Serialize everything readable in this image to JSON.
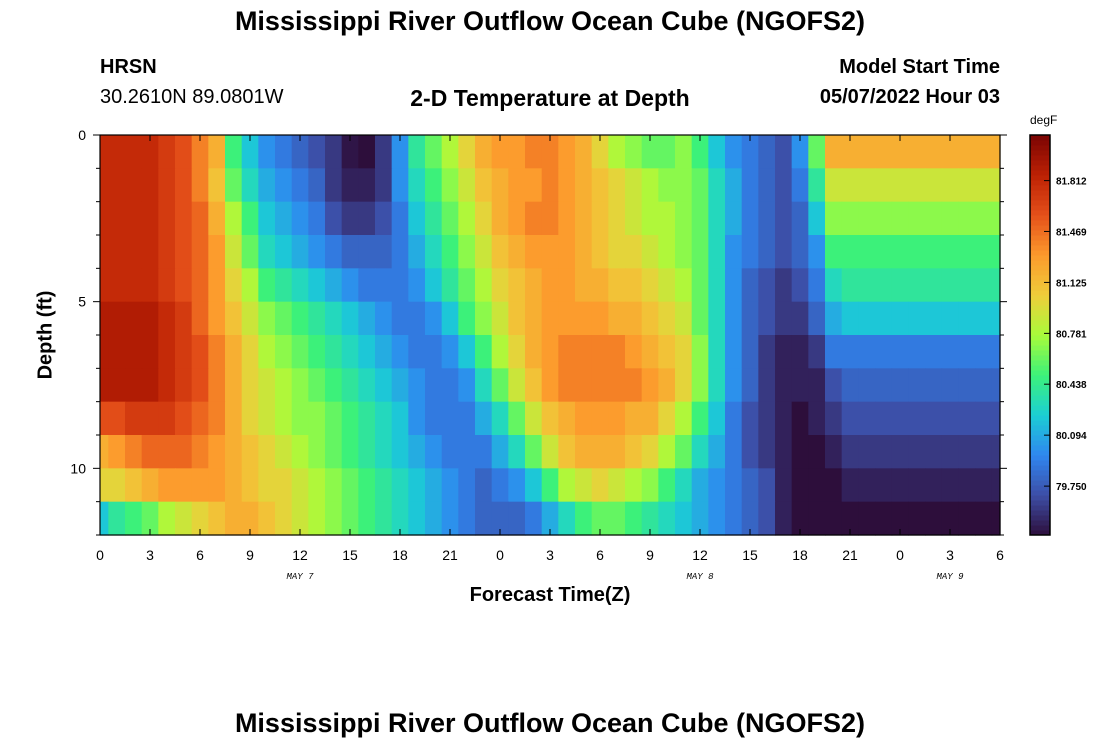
{
  "page": {
    "title": "Mississippi River Outflow Ocean Cube (NGOFS2)",
    "title_bottom": "Mississippi River Outflow Ocean Cube (NGOFS2)",
    "station": "HRSN",
    "coords": "30.2610N  89.0801W",
    "subtitle": "2-D Temperature at Depth",
    "run_label": "Model Start Time",
    "run_value": "05/07/2022 Hour 03"
  },
  "chart_data": {
    "type": "heatmap",
    "title": "2-D Temperature at Depth",
    "xlabel": "Forecast Time(Z)",
    "ylabel": "Depth (ft)",
    "units": "degF",
    "x_range_hours": [
      0,
      54
    ],
    "x_ticks": [
      "0",
      "3",
      "6",
      "9",
      "12",
      "15",
      "18",
      "21",
      "0",
      "3",
      "6",
      "9",
      "12",
      "15",
      "18",
      "21",
      "0",
      "3",
      "6"
    ],
    "day_labels": [
      {
        "label": "MAY 7",
        "hour": 12
      },
      {
        "label": "MAY 8",
        "hour": 36
      },
      {
        "label": "MAY 9",
        "hour": 51
      }
    ],
    "y_range": [
      0,
      12
    ],
    "y_ticks": [
      "0",
      "5",
      "10"
    ],
    "y_tick_values": [
      0,
      5,
      10
    ],
    "depth_levels": [
      0.5,
      1.5,
      2.5,
      3.5,
      4.5,
      5.5,
      6.5,
      7.5,
      8.5,
      9.5,
      10.5,
      11.5
    ],
    "colorbar_range": [
      79.42,
      82.12
    ],
    "colorbar_ticks": [
      "81.812",
      "81.469",
      "81.125",
      "80.781",
      "80.438",
      "80.094",
      "79.750"
    ],
    "colorbar_tick_values": [
      81.812,
      81.469,
      81.125,
      80.781,
      80.438,
      80.094,
      79.75
    ],
    "colormap": [
      "#2d0e3b",
      "#3d4ea6",
      "#2f86f0",
      "#1bcfd4",
      "#3cf17a",
      "#a8fc3a",
      "#efcd3a",
      "#fc9a2c",
      "#e5501a",
      "#bd2104",
      "#7a0403"
    ],
    "keyframes": {
      "hours": [
        0,
        1,
        2,
        3,
        4,
        5,
        6,
        7,
        8,
        9,
        10,
        11,
        12,
        13,
        14,
        15,
        16,
        17,
        18,
        19,
        20,
        21,
        22,
        23,
        24,
        25,
        26,
        27,
        28,
        29,
        30,
        31,
        32,
        33,
        34,
        35,
        36,
        37,
        38,
        39,
        40,
        41,
        42,
        43,
        44,
        45,
        46,
        47,
        48,
        49,
        50,
        51,
        52,
        53,
        54
      ],
      "values_by_depth": [
        [
          81.8,
          81.8,
          81.8,
          81.8,
          81.7,
          81.6,
          81.4,
          81.2,
          80.5,
          80.2,
          80.0,
          79.9,
          79.8,
          79.7,
          79.6,
          79.45,
          79.42,
          79.6,
          80.0,
          80.4,
          80.6,
          80.8,
          81.0,
          81.2,
          81.3,
          81.3,
          81.4,
          81.4,
          81.3,
          81.2,
          81.0,
          80.8,
          80.7,
          80.6,
          80.6,
          80.7,
          80.5,
          80.2,
          80.0,
          79.9,
          79.8,
          79.7,
          80.0,
          80.6,
          81.2,
          81.2,
          81.2,
          81.2,
          81.2,
          81.2,
          81.2,
          81.2,
          81.2,
          81.2,
          81.2
        ],
        [
          81.8,
          81.8,
          81.8,
          81.8,
          81.7,
          81.6,
          81.4,
          81.1,
          80.6,
          80.3,
          80.1,
          80.0,
          79.9,
          79.8,
          79.6,
          79.5,
          79.5,
          79.6,
          80.0,
          80.3,
          80.5,
          80.7,
          80.9,
          81.1,
          81.2,
          81.3,
          81.3,
          81.4,
          81.3,
          81.2,
          81.1,
          81.0,
          80.9,
          80.8,
          80.7,
          80.7,
          80.6,
          80.3,
          80.1,
          79.9,
          79.8,
          79.7,
          79.9,
          80.4,
          80.9,
          80.9,
          80.9,
          80.9,
          80.9,
          80.9,
          80.9,
          80.9,
          80.9,
          80.9,
          80.9
        ],
        [
          81.8,
          81.8,
          81.8,
          81.8,
          81.7,
          81.6,
          81.5,
          81.2,
          80.8,
          80.5,
          80.2,
          80.1,
          80.0,
          79.9,
          79.7,
          79.6,
          79.6,
          79.7,
          79.9,
          80.2,
          80.4,
          80.6,
          80.8,
          81.0,
          81.2,
          81.3,
          81.4,
          81.4,
          81.3,
          81.2,
          81.1,
          81.0,
          80.9,
          80.8,
          80.8,
          80.7,
          80.6,
          80.3,
          80.1,
          79.9,
          79.8,
          79.7,
          79.8,
          80.2,
          80.7,
          80.7,
          80.7,
          80.7,
          80.7,
          80.7,
          80.7,
          80.7,
          80.7,
          80.7,
          80.7
        ],
        [
          81.8,
          81.8,
          81.8,
          81.8,
          81.7,
          81.6,
          81.5,
          81.3,
          80.9,
          80.6,
          80.3,
          80.2,
          80.1,
          80.0,
          79.9,
          79.8,
          79.8,
          79.8,
          79.9,
          80.1,
          80.3,
          80.5,
          80.7,
          80.9,
          81.1,
          81.2,
          81.3,
          81.3,
          81.3,
          81.2,
          81.1,
          81.0,
          81.0,
          80.9,
          80.8,
          80.7,
          80.6,
          80.3,
          80.0,
          79.9,
          79.8,
          79.7,
          79.8,
          80.0,
          80.5,
          80.5,
          80.5,
          80.5,
          80.5,
          80.5,
          80.5,
          80.5,
          80.5,
          80.5,
          80.5
        ],
        [
          81.8,
          81.8,
          81.8,
          81.8,
          81.7,
          81.6,
          81.5,
          81.3,
          81.0,
          80.8,
          80.5,
          80.4,
          80.3,
          80.2,
          80.1,
          80.0,
          79.9,
          79.9,
          79.9,
          80.0,
          80.2,
          80.4,
          80.6,
          80.8,
          81.0,
          81.1,
          81.2,
          81.3,
          81.3,
          81.2,
          81.2,
          81.1,
          81.1,
          81.0,
          80.9,
          80.8,
          80.6,
          80.3,
          80.0,
          79.8,
          79.7,
          79.6,
          79.7,
          79.9,
          80.3,
          80.4,
          80.4,
          80.4,
          80.4,
          80.4,
          80.4,
          80.4,
          80.4,
          80.4,
          80.4
        ],
        [
          81.9,
          81.9,
          81.9,
          81.9,
          81.8,
          81.7,
          81.5,
          81.3,
          81.1,
          80.9,
          80.7,
          80.6,
          80.5,
          80.4,
          80.3,
          80.2,
          80.1,
          80.0,
          79.9,
          79.9,
          80.0,
          80.2,
          80.5,
          80.7,
          80.9,
          81.1,
          81.2,
          81.3,
          81.3,
          81.3,
          81.3,
          81.2,
          81.2,
          81.1,
          81.0,
          80.9,
          80.6,
          80.3,
          80.0,
          79.8,
          79.7,
          79.6,
          79.6,
          79.8,
          80.1,
          80.2,
          80.2,
          80.2,
          80.2,
          80.2,
          80.2,
          80.2,
          80.2,
          80.2,
          80.2
        ],
        [
          81.9,
          81.9,
          81.9,
          81.9,
          81.8,
          81.7,
          81.6,
          81.4,
          81.2,
          81.0,
          80.8,
          80.7,
          80.6,
          80.5,
          80.4,
          80.3,
          80.2,
          80.1,
          80.0,
          79.9,
          79.9,
          80.0,
          80.2,
          80.5,
          80.8,
          81.0,
          81.2,
          81.3,
          81.4,
          81.4,
          81.4,
          81.4,
          81.3,
          81.2,
          81.1,
          81.0,
          80.7,
          80.3,
          80.0,
          79.8,
          79.6,
          79.5,
          79.5,
          79.6,
          79.9,
          79.9,
          79.9,
          79.9,
          79.9,
          79.9,
          79.9,
          79.9,
          79.9,
          79.9,
          79.9
        ],
        [
          81.9,
          81.9,
          81.9,
          81.9,
          81.8,
          81.7,
          81.6,
          81.4,
          81.2,
          81.0,
          80.9,
          80.8,
          80.7,
          80.6,
          80.5,
          80.4,
          80.3,
          80.2,
          80.1,
          80.0,
          79.9,
          79.9,
          80.0,
          80.3,
          80.6,
          80.9,
          81.1,
          81.3,
          81.4,
          81.4,
          81.4,
          81.4,
          81.4,
          81.3,
          81.2,
          81.0,
          80.7,
          80.3,
          80.0,
          79.8,
          79.6,
          79.5,
          79.5,
          79.5,
          79.7,
          79.8,
          79.8,
          79.8,
          79.8,
          79.8,
          79.8,
          79.8,
          79.8,
          79.8,
          79.8
        ],
        [
          81.6,
          81.6,
          81.7,
          81.7,
          81.7,
          81.6,
          81.5,
          81.4,
          81.2,
          81.0,
          80.9,
          80.8,
          80.7,
          80.7,
          80.6,
          80.5,
          80.4,
          80.3,
          80.2,
          80.0,
          79.9,
          79.9,
          79.9,
          80.1,
          80.3,
          80.6,
          80.9,
          81.1,
          81.2,
          81.3,
          81.3,
          81.3,
          81.2,
          81.2,
          81.0,
          80.8,
          80.5,
          80.2,
          79.9,
          79.7,
          79.6,
          79.5,
          79.4,
          79.5,
          79.6,
          79.7,
          79.7,
          79.7,
          79.7,
          79.7,
          79.7,
          79.7,
          79.7,
          79.7,
          79.7
        ],
        [
          81.2,
          81.3,
          81.4,
          81.5,
          81.5,
          81.5,
          81.4,
          81.3,
          81.2,
          81.1,
          81.0,
          80.9,
          80.8,
          80.7,
          80.6,
          80.5,
          80.4,
          80.3,
          80.2,
          80.1,
          80.0,
          79.9,
          79.9,
          79.9,
          80.1,
          80.3,
          80.6,
          80.9,
          81.1,
          81.2,
          81.2,
          81.2,
          81.1,
          81.0,
          80.8,
          80.6,
          80.3,
          80.1,
          79.9,
          79.7,
          79.6,
          79.5,
          79.4,
          79.4,
          79.5,
          79.6,
          79.6,
          79.6,
          79.6,
          79.6,
          79.6,
          79.6,
          79.6,
          79.6,
          79.6
        ],
        [
          81.0,
          81.0,
          81.1,
          81.2,
          81.3,
          81.3,
          81.3,
          81.3,
          81.2,
          81.1,
          81.0,
          81.0,
          80.9,
          80.8,
          80.7,
          80.6,
          80.5,
          80.4,
          80.3,
          80.2,
          80.1,
          80.0,
          79.9,
          79.8,
          79.9,
          80.0,
          80.2,
          80.5,
          80.8,
          80.9,
          81.0,
          80.9,
          80.8,
          80.7,
          80.5,
          80.3,
          80.1,
          80.0,
          79.9,
          79.8,
          79.7,
          79.5,
          79.4,
          79.4,
          79.4,
          79.5,
          79.5,
          79.5,
          79.5,
          79.5,
          79.5,
          79.5,
          79.5,
          79.5,
          79.5
        ],
        [
          80.2,
          80.4,
          80.5,
          80.6,
          80.8,
          80.9,
          81.0,
          81.1,
          81.2,
          81.2,
          81.1,
          81.0,
          80.9,
          80.8,
          80.7,
          80.6,
          80.5,
          80.4,
          80.3,
          80.2,
          80.1,
          80.0,
          79.9,
          79.8,
          79.8,
          79.8,
          79.9,
          80.1,
          80.3,
          80.5,
          80.6,
          80.6,
          80.5,
          80.4,
          80.3,
          80.2,
          80.1,
          80.0,
          79.9,
          79.8,
          79.7,
          79.5,
          79.4,
          79.4,
          79.4,
          79.4,
          79.4,
          79.4,
          79.4,
          79.4,
          79.4,
          79.4,
          79.4,
          79.4,
          79.4
        ]
      ]
    }
  }
}
